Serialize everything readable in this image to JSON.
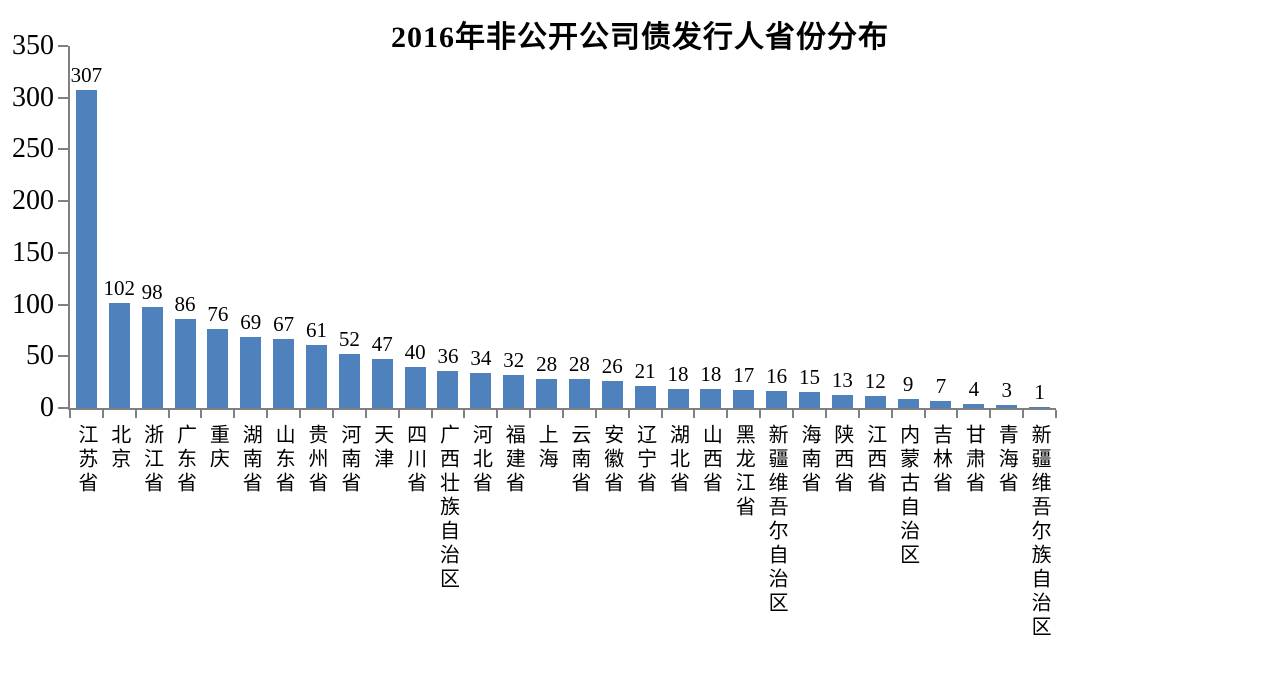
{
  "chart_data": {
    "type": "bar",
    "title": "2016年非公开公司债发行人省份分布",
    "categories": [
      "江苏省",
      "北京",
      "浙江省",
      "广东省",
      "重庆",
      "湖南省",
      "山东省",
      "贵州省",
      "河南省",
      "天津",
      "四川省",
      "广西壮族自治区",
      "河北省",
      "福建省",
      "上海",
      "云南省",
      "安徽省",
      "辽宁省",
      "湖北省",
      "山西省",
      "黑龙江省",
      "新疆维吾尔自治区",
      "海南省",
      "陕西省",
      "江西省",
      "内蒙古自治区",
      "吉林省",
      "甘肃省",
      "青海省",
      "新疆维吾尔族自治区"
    ],
    "values": [
      307,
      102,
      98,
      86,
      76,
      69,
      67,
      61,
      52,
      47,
      40,
      36,
      34,
      32,
      28,
      28,
      26,
      21,
      18,
      18,
      17,
      16,
      15,
      13,
      12,
      9,
      7,
      4,
      3,
      1
    ],
    "data_labels": [
      307,
      102,
      98,
      86,
      76,
      69,
      67,
      61,
      52,
      47,
      40,
      36,
      34,
      32,
      28,
      28,
      26,
      21,
      18,
      18,
      17,
      16,
      15,
      13,
      12,
      9,
      7,
      4,
      3,
      1
    ],
    "xlabel": "",
    "ylabel": "",
    "ylim": [
      0,
      350
    ],
    "y_ticks": [
      0,
      50,
      100,
      150,
      200,
      250,
      300,
      350
    ],
    "grid": false,
    "legend": false,
    "bar_color": "#4F81BD",
    "axis_color": "#808080",
    "text_color": "#000000",
    "background_color": "#FFFFFF"
  }
}
